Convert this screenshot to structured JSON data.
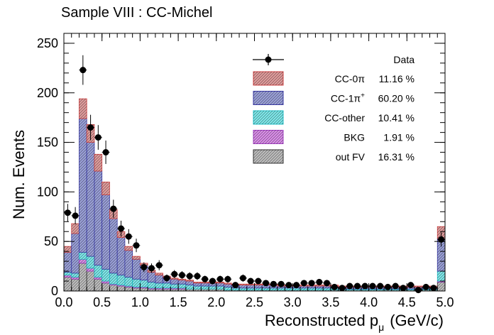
{
  "chart_data": {
    "type": "bar",
    "stacked": true,
    "title": "Sample VIII : CC-Michel",
    "xlabel_main": "Reconstructed p",
    "xlabel_sub": "μ",
    "xlabel_unit": "(GeV/c)",
    "ylabel": "Num. Events",
    "xlim": [
      0,
      5
    ],
    "ylim": [
      0,
      260
    ],
    "x_ticks": [
      "0.0",
      "0.5",
      "1.0",
      "1.5",
      "2.0",
      "2.5",
      "3.0",
      "3.5",
      "4.0",
      "4.5",
      "5.0"
    ],
    "y_ticks": [
      "0",
      "50",
      "100",
      "150",
      "200",
      "250"
    ],
    "bin_width": 0.1,
    "series": [
      {
        "name": "out FV",
        "key": "outfv",
        "color": "#333333",
        "fill": "#bdbdbd",
        "pct": "16.31 %",
        "values": [
          14,
          12,
          28,
          20,
          12,
          8,
          6,
          5,
          4,
          3,
          3,
          2,
          2,
          2,
          2,
          2,
          2,
          2,
          2,
          2,
          2,
          1,
          1,
          1,
          1,
          1,
          1,
          1,
          1,
          1,
          1,
          1,
          1,
          1,
          1,
          1,
          1,
          1,
          1,
          1,
          1,
          1,
          1,
          1,
          1,
          1,
          1,
          1,
          1,
          9
        ]
      },
      {
        "name": "BKG",
        "key": "bkg",
        "color": "#a040c0",
        "fill": "#d98ee8",
        "pct": "1.91 %",
        "values": [
          2,
          2,
          4,
          3,
          2,
          2,
          1,
          1,
          1,
          1,
          1,
          1,
          1,
          1,
          1,
          1,
          0,
          0,
          0,
          0,
          0,
          0,
          0,
          0,
          0,
          0,
          0,
          0,
          0,
          0,
          0,
          0,
          0,
          0,
          0,
          0,
          0,
          0,
          0,
          0,
          0,
          0,
          0,
          0,
          0,
          0,
          0,
          0,
          0,
          1
        ]
      },
      {
        "name": "CC-other",
        "key": "ccother",
        "color": "#20c0c8",
        "fill": "#7fe8ea",
        "pct": "10.41 %",
        "values": [
          3,
          4,
          7,
          12,
          12,
          12,
          11,
          10,
          9,
          8,
          7,
          6,
          5,
          5,
          4,
          4,
          4,
          3,
          3,
          3,
          3,
          3,
          2,
          2,
          2,
          2,
          2,
          2,
          2,
          2,
          2,
          2,
          2,
          2,
          2,
          2,
          1,
          1,
          1,
          1,
          1,
          1,
          1,
          1,
          1,
          1,
          1,
          1,
          1,
          10
        ]
      },
      {
        "name": "CC-1π⁺",
        "name_main": "CC-1π",
        "name_sup": "+",
        "key": "cc1pi",
        "color": "#3a3aa8",
        "fill": "#9aa0d8",
        "pct": "60.20 %",
        "values": [
          20,
          40,
          135,
          115,
          95,
          75,
          55,
          38,
          27,
          20,
          15,
          10,
          8,
          6,
          5,
          4,
          4,
          3,
          3,
          3,
          3,
          3,
          3,
          3,
          3,
          3,
          3,
          3,
          2,
          2,
          2,
          2,
          2,
          2,
          2,
          2,
          2,
          2,
          2,
          2,
          2,
          2,
          2,
          2,
          2,
          2,
          2,
          2,
          2,
          33
        ]
      },
      {
        "name": "CC-0π",
        "name_main": "CC-0π",
        "name_sup": "",
        "key": "cc0pi",
        "color": "#d04040",
        "fill": "#e09c9c",
        "pct": "11.16 %",
        "values": [
          6,
          10,
          20,
          18,
          17,
          13,
          9,
          6,
          4,
          3,
          2,
          2,
          2,
          1,
          1,
          1,
          1,
          1,
          1,
          1,
          1,
          1,
          1,
          1,
          1,
          1,
          1,
          1,
          1,
          1,
          1,
          1,
          1,
          1,
          1,
          1,
          1,
          1,
          1,
          1,
          1,
          1,
          1,
          1,
          1,
          1,
          1,
          1,
          1,
          12
        ]
      }
    ],
    "data_points": {
      "name": "Data",
      "x": [
        0.05,
        0.15,
        0.25,
        0.35,
        0.45,
        0.55,
        0.65,
        0.75,
        0.85,
        0.95,
        1.05,
        1.15,
        1.25,
        1.35,
        1.45,
        1.55,
        1.65,
        1.75,
        1.85,
        1.95,
        2.05,
        2.15,
        2.25,
        2.35,
        2.45,
        2.55,
        2.65,
        2.75,
        2.85,
        2.95,
        3.05,
        3.15,
        3.25,
        3.35,
        3.45,
        3.55,
        3.65,
        3.75,
        3.85,
        3.95,
        4.05,
        4.15,
        4.25,
        4.35,
        4.45,
        4.55,
        4.65,
        4.75,
        4.85,
        4.95
      ],
      "y": [
        79,
        76,
        223,
        165,
        155,
        140,
        83,
        63,
        55,
        46,
        24,
        23,
        26,
        13,
        17,
        16,
        15,
        15,
        12,
        10,
        12,
        12,
        6,
        13,
        10,
        10,
        8,
        7,
        7,
        6,
        6,
        8,
        8,
        9,
        8,
        4,
        3,
        5,
        5,
        5,
        5,
        5,
        4,
        5,
        3,
        6,
        1,
        4,
        3,
        52
      ]
    },
    "legend_position": "top-right",
    "grid": false
  }
}
